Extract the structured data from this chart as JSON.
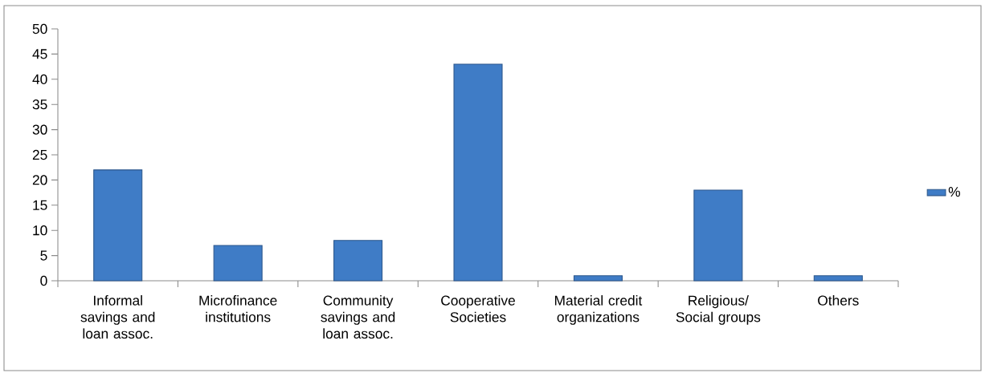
{
  "chart_data": {
    "type": "bar",
    "categories": [
      "Informal savings and loan assoc.",
      "Microfinance institutions",
      "Community savings and loan assoc.",
      "Cooperative Societies",
      "Material credit organizations",
      "Religious/ Social groups",
      "Others"
    ],
    "series": [
      {
        "name": "%",
        "color": "#3f7cc6",
        "values": [
          22,
          7,
          8,
          43,
          1,
          18,
          1
        ]
      }
    ],
    "ylim": [
      0,
      50
    ],
    "yticks": [
      0,
      5,
      10,
      15,
      20,
      25,
      30,
      35,
      40,
      45,
      50
    ],
    "legend": "right"
  }
}
